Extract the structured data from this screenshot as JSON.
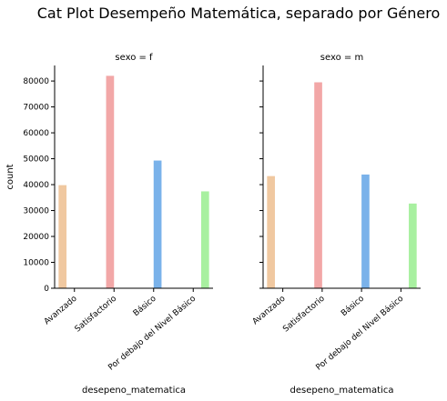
{
  "chart_data": {
    "type": "bar",
    "title": "Cat Plot Desempeño Matemática, separado por Género",
    "ylabel": "count",
    "ylim": [
      0,
      86000
    ],
    "yticks": [
      0,
      10000,
      20000,
      30000,
      40000,
      50000,
      60000,
      70000,
      80000
    ],
    "categories": [
      "Avanzado",
      "Satisfactorio",
      "Básico",
      "Por debajo del Nivel Básico"
    ],
    "hue_order": [
      "Avanzado",
      "Satisfactorio",
      "Básico",
      "Por debajo del Nivel Básico"
    ],
    "colors": [
      "#f0c8a0",
      "#f2a7a7",
      "#7ab2ea",
      "#a8f0a0"
    ],
    "grid": false,
    "facets": [
      {
        "title": "sexo = f",
        "xlabel": "desepeno_matematica",
        "values": [
          39800,
          82000,
          49300,
          37400
        ]
      },
      {
        "title": "sexo = m",
        "xlabel": "desepeno_matematica",
        "values": [
          43300,
          79500,
          43900,
          32700
        ]
      }
    ]
  }
}
